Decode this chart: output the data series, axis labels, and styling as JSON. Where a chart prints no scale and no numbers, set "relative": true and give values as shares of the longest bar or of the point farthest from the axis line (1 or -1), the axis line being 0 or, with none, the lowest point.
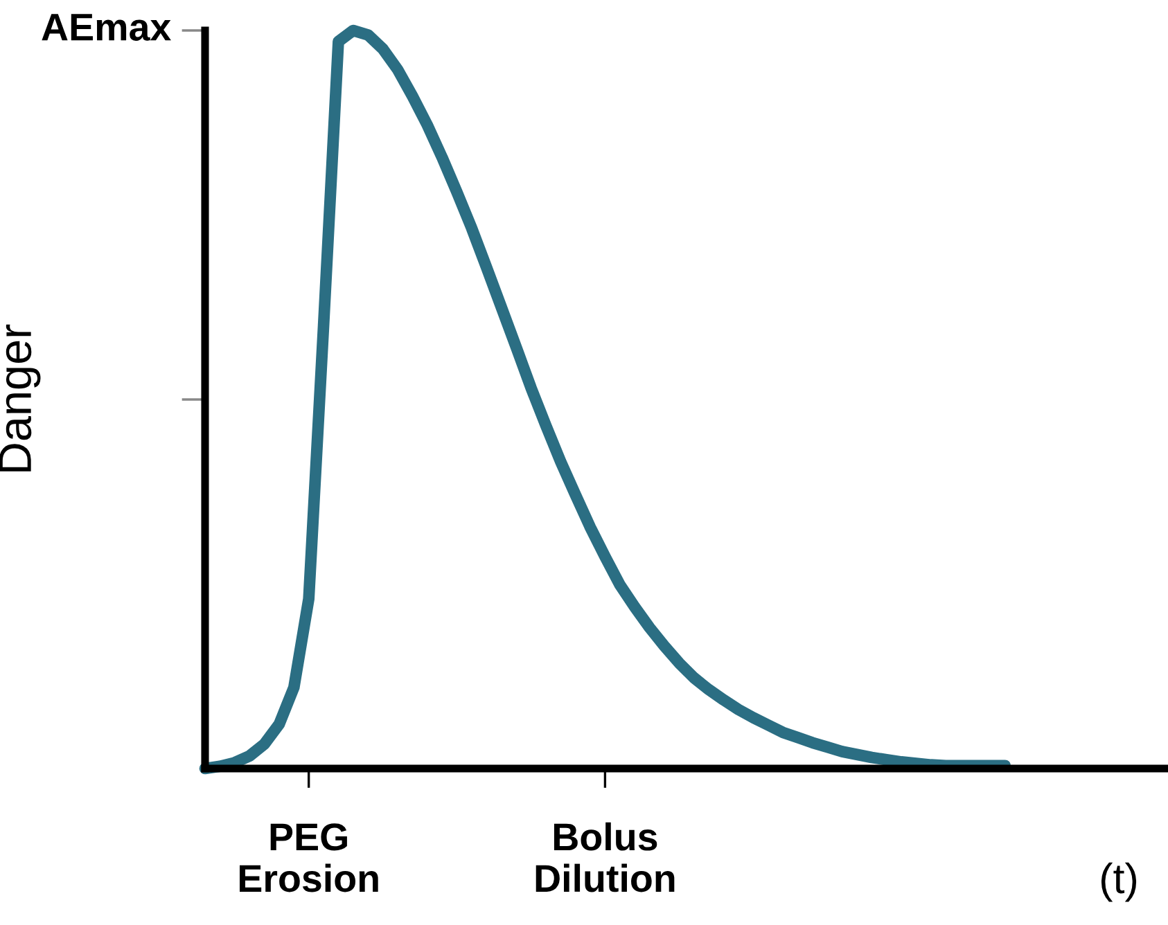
{
  "chart_data": {
    "type": "line",
    "relative": true,
    "ylabel": "Danger",
    "xlabel": "(t)",
    "annotations": [
      "AEmax"
    ],
    "categories": [
      null,
      null,
      null,
      null,
      null,
      null,
      null,
      "PEG\nErosion",
      null,
      null,
      null,
      null,
      null,
      null,
      null,
      null,
      null,
      null,
      null,
      null,
      null,
      null,
      null,
      null,
      null,
      null,
      null,
      "Bolus\nDilution",
      null,
      null,
      null,
      null,
      null,
      null,
      null,
      null,
      null,
      null,
      null,
      null,
      null,
      null,
      null,
      null,
      null,
      null,
      null,
      null,
      null,
      null,
      null,
      null,
      null,
      null,
      null,
      null,
      null,
      null,
      null,
      null,
      null,
      null,
      null,
      null,
      null,
      null
    ],
    "grid": false,
    "marker": "none",
    "line_style": "solid",
    "series": [
      {
        "color": "#2b6e83",
        "values": [
          0,
          0.003,
          0.008,
          0.017,
          0.033,
          0.06,
          0.11,
          0.23,
          0.6,
          0.985,
          1,
          0.994,
          0.975,
          0.947,
          0.911,
          0.872,
          0.828,
          0.781,
          0.732,
          0.679,
          0.625,
          0.571,
          0.516,
          0.465,
          0.416,
          0.371,
          0.327,
          0.287,
          0.249,
          0.219,
          0.191,
          0.166,
          0.143,
          0.123,
          0.107,
          0.093,
          0.08,
          0.069,
          0.059,
          0.049,
          0.042,
          0.035,
          0.029,
          0.023,
          0.019,
          0.015,
          0.012,
          0.009,
          0.007,
          0.005,
          0.004,
          0.004,
          0.004,
          0.004,
          0.004,
          null,
          null,
          null,
          null,
          null,
          null,
          null,
          null,
          null,
          null,
          null
        ]
      }
    ]
  }
}
